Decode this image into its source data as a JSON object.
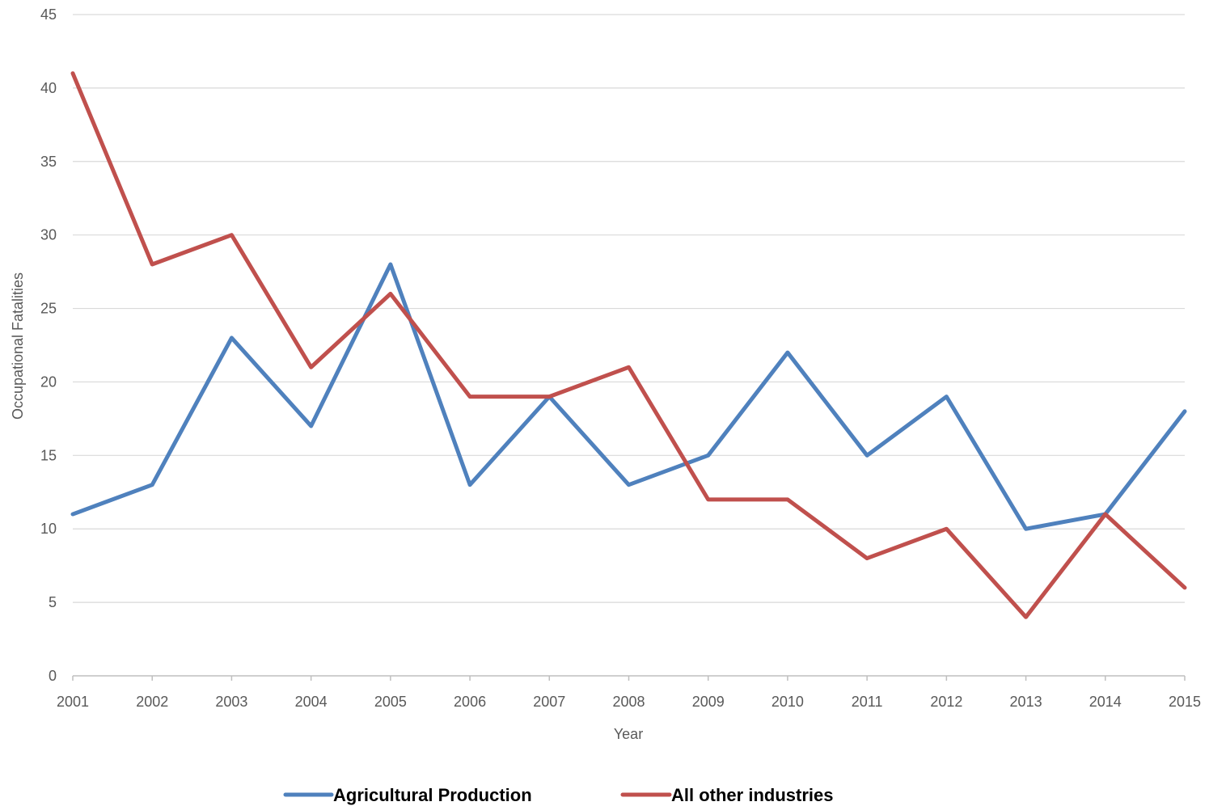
{
  "chart_data": {
    "type": "line",
    "title": "",
    "xlabel": "Year",
    "ylabel": "Occupational Fatalities",
    "categories": [
      "2001",
      "2002",
      "2003",
      "2004",
      "2005",
      "2006",
      "2007",
      "2008",
      "2009",
      "2010",
      "2011",
      "2012",
      "2013",
      "2014",
      "2015"
    ],
    "ylim": [
      0,
      45
    ],
    "yticks": [
      0,
      5,
      10,
      15,
      20,
      25,
      30,
      35,
      40,
      45
    ],
    "grid": true,
    "legend_position": "bottom",
    "series": [
      {
        "name": "Agricultural Production",
        "color": "#4F81BD",
        "values": [
          11,
          13,
          23,
          17,
          28,
          13,
          19,
          13,
          15,
          22,
          15,
          19,
          10,
          11,
          18
        ]
      },
      {
        "name": "All other industries",
        "color": "#C0504D",
        "values": [
          41,
          28,
          30,
          21,
          26,
          19,
          19,
          21,
          12,
          12,
          8,
          10,
          4,
          11,
          6
        ]
      }
    ]
  }
}
